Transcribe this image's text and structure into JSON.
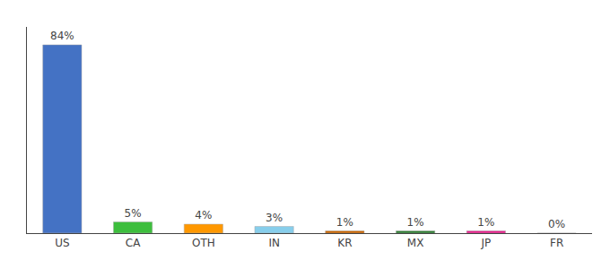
{
  "chart_data": {
    "type": "bar",
    "categories": [
      "US",
      "CA",
      "OTH",
      "IN",
      "KR",
      "MX",
      "JP",
      "FR"
    ],
    "values": [
      84,
      5,
      4,
      3,
      1,
      1,
      1,
      0
    ],
    "value_labels": [
      "84%",
      "5%",
      "4%",
      "3%",
      "1%",
      "1%",
      "1%",
      "0%"
    ],
    "colors": [
      "#4472C4",
      "#3DBE3D",
      "#FF9800",
      "#87CEEB",
      "#CC6600",
      "#2E7D32",
      "#E91E8C",
      "#ffffff"
    ],
    "ylim": [
      0,
      92
    ],
    "grid": false,
    "data_labels": true,
    "tick_labels": "x"
  }
}
